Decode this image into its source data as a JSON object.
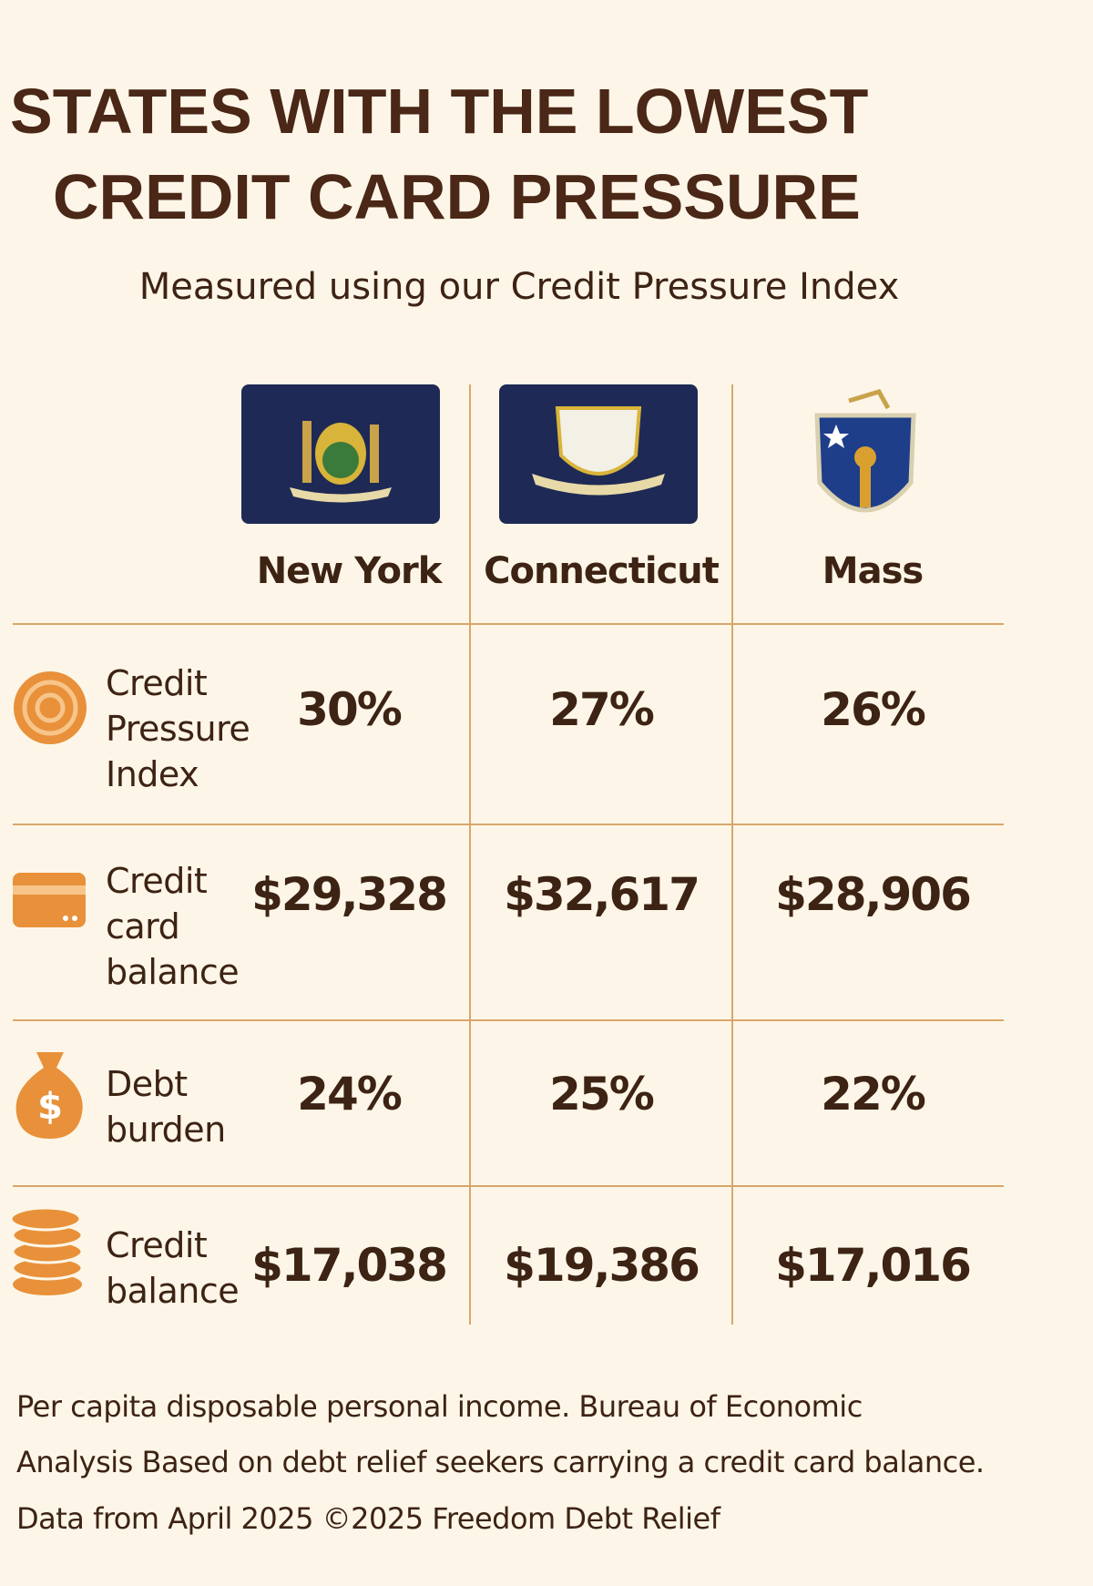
{
  "header": {
    "title_lines": [
      "STATES WITH THE LOWEST",
      "CREDIT CARD PRESSURE"
    ],
    "subtitle": "Measured using our Credit Pressure Index"
  },
  "table": {
    "columns": [
      "New York",
      "Connecticut",
      "Mass"
    ],
    "rows": [
      {
        "label": "Credit Pressure Index",
        "values": [
          "30%",
          "27%",
          "26%"
        ]
      },
      {
        "label": "Credit card balance",
        "values": [
          "$29,328",
          "$32,617",
          "$28,906"
        ]
      },
      {
        "label": "Debt burden",
        "values": [
          "24%",
          "25%",
          "22%"
        ]
      },
      {
        "label": "Credit balance",
        "values": [
          "$17,038",
          "$19,386",
          "$17,016"
        ]
      }
    ]
  },
  "footer": {
    "lines": [
      "Per capita disposable personal income. Bureau of Economic",
      "Analysis Based on debt relief seekers carrying a credit card balance.",
      "Data from April 2025 ©2025 Freedom Debt Relief"
    ]
  }
}
